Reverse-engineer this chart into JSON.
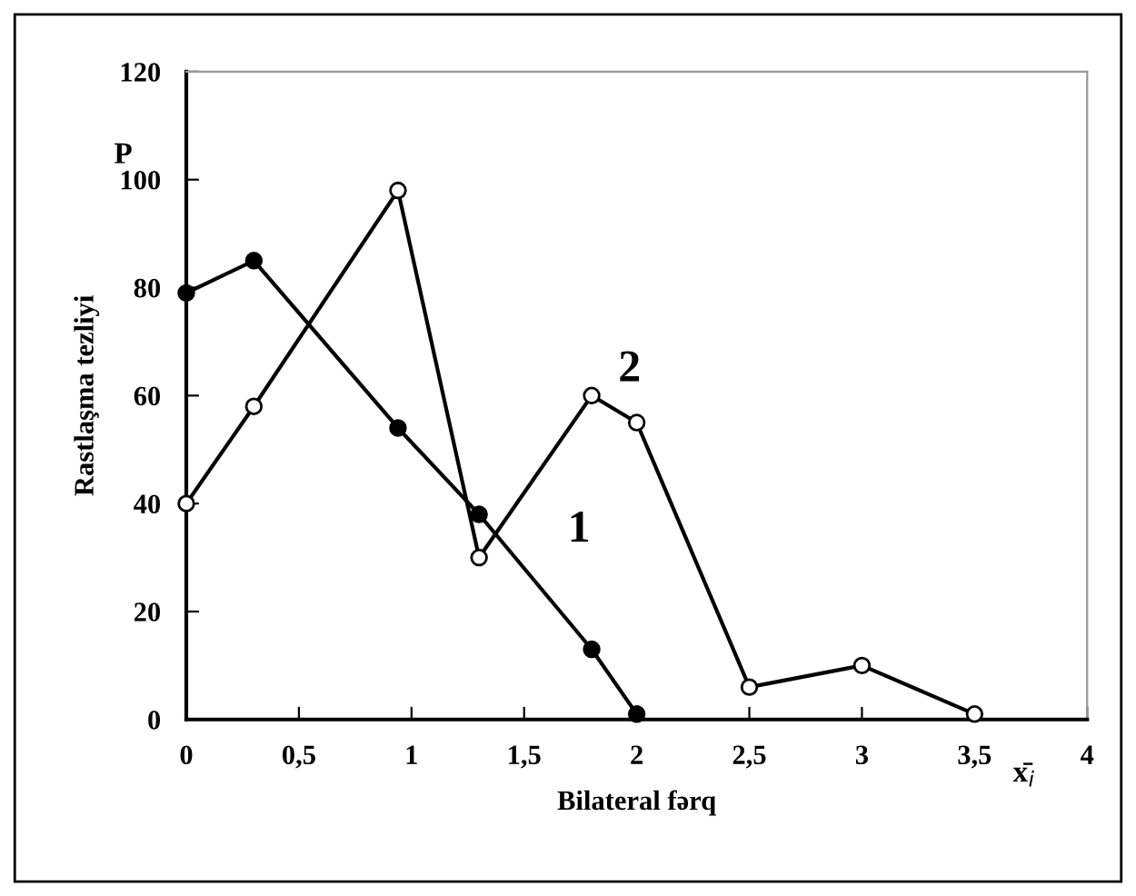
{
  "chart_data": {
    "type": "line",
    "xlabel": "Bilateral fərq",
    "ylabel": "Rastlaşma tezliyi",
    "annotations": [
      "P",
      "x̄$_{i}$"
    ],
    "series": [
      {
        "name": "1",
        "color": "#000000",
        "x": [
          0,
          0.3,
          0.94,
          1.3,
          1.8,
          2.0
        ],
        "values": [
          79,
          85,
          54,
          38,
          13,
          1
        ]
      },
      {
        "name": "2",
        "color": "#000000",
        "x": [
          0,
          0.3,
          0.94,
          1.3,
          1.8,
          2.0,
          2.5,
          3.0,
          3.5
        ],
        "values": [
          40,
          58,
          98,
          30,
          60,
          55,
          6,
          10,
          1
        ]
      }
    ],
    "xlim": [
      0,
      4
    ],
    "ylim": [
      0,
      120
    ],
    "xticks": [
      0,
      {
        "value": 0.5,
        "label": "0,5"
      },
      1,
      {
        "value": 1.5,
        "label": "1,5"
      },
      2,
      {
        "value": 2.5,
        "label": "2,5"
      },
      3,
      {
        "value": 3.5,
        "label": "3,5"
      },
      4
    ],
    "yticks": [
      0,
      20,
      40,
      60,
      80,
      100,
      120
    ],
    "marker": "circle",
    "line_style": "solid",
    "grid": false,
    "legend": false
  }
}
